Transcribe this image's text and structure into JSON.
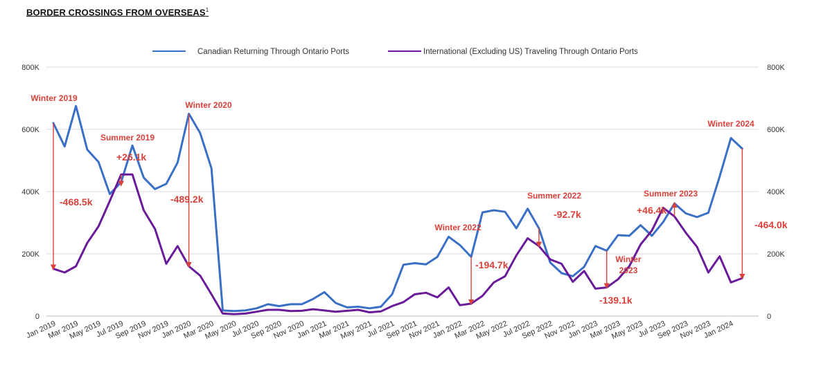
{
  "title": "BORDER CROSSINGS FROM OVERSEAS",
  "title_sup": "1",
  "chart_data": {
    "type": "line",
    "title": "BORDER CROSSINGS FROM OVERSEAS",
    "y_ticks": [
      "0",
      "200K",
      "400K",
      "600K",
      "800K"
    ],
    "y_tick_values": [
      0,
      200000,
      400000,
      600000,
      800000
    ],
    "ylim": [
      0,
      800000
    ],
    "x_tick_labels": [
      "Jan 2019",
      "Mar 2019",
      "May 2019",
      "Jul 2019",
      "Sep 2019",
      "Nov 2019",
      "Jan 2020",
      "Mar 2020",
      "May 2020",
      "Jul 2020",
      "Sep 2020",
      "Nov 2020",
      "Jan 2021",
      "Mar 2021",
      "May 2021",
      "Jul 2021",
      "Sep 2021",
      "Nov 2021",
      "Jan 2022",
      "Mar 2022",
      "May 2022",
      "Jul 2022",
      "Sep 2022",
      "Nov 2022",
      "Jan 2023",
      "Mar 2023",
      "May 2023",
      "Jul 2023",
      "Sep 2023",
      "Nov 2023",
      "Jan 2024"
    ],
    "legend_position": "top",
    "colors": {
      "canadian": "#3a6fc6",
      "international": "#6a1b9a",
      "annotation": "#d9413a",
      "grid": "#d9d9d9"
    },
    "series": [
      {
        "name": "Canadian Returning Through Ontario Ports",
        "key": "canadian",
        "values": [
          620000,
          545000,
          675000,
          535000,
          495000,
          392000,
          430000,
          548000,
          445000,
          408000,
          425000,
          493000,
          650000,
          588000,
          475000,
          18000,
          16000,
          18000,
          25000,
          38000,
          32000,
          38000,
          38000,
          55000,
          77000,
          42000,
          28000,
          30000,
          25000,
          30000,
          70000,
          165000,
          170000,
          166000,
          190000,
          255000,
          228000,
          190000,
          333000,
          340000,
          335000,
          282000,
          345000,
          282000,
          172000,
          138000,
          128000,
          158000,
          225000,
          210000,
          260000,
          258000,
          292000,
          258000,
          302000,
          362000,
          330000,
          318000,
          332000,
          448000,
          572000,
          538000
        ]
      },
      {
        "name": "International (Excluding US) Traveling Through Ontario Ports",
        "key": "international",
        "values": [
          152000,
          140000,
          160000,
          235000,
          288000,
          370000,
          455000,
          455000,
          340000,
          280000,
          168000,
          225000,
          160000,
          130000,
          70000,
          8000,
          6000,
          8000,
          14000,
          20000,
          20000,
          16000,
          17000,
          22000,
          18000,
          14000,
          17000,
          20000,
          12000,
          15000,
          32000,
          45000,
          70000,
          75000,
          60000,
          92000,
          35000,
          40000,
          65000,
          108000,
          128000,
          195000,
          250000,
          225000,
          182000,
          168000,
          110000,
          145000,
          88000,
          92000,
          118000,
          160000,
          230000,
          275000,
          348000,
          320000,
          268000,
          222000,
          140000,
          192000,
          108000,
          122000
        ]
      }
    ],
    "annotations": [
      {
        "label": "Winter 2019",
        "value": "-468.5k"
      },
      {
        "label": "Summer 2019",
        "value": "+26.1k"
      },
      {
        "label": "Winter 2020",
        "value": "-489.2k"
      },
      {
        "label": "Winter 2022",
        "value": "-194.7k"
      },
      {
        "label": "Summer 2022",
        "value": "-92.7k"
      },
      {
        "label": "Winter 2023",
        "value": "-139.1k"
      },
      {
        "label": "Summer 2023",
        "value": "+46.4k"
      },
      {
        "label": "Winter 2024",
        "value": "-464.0k"
      }
    ]
  }
}
